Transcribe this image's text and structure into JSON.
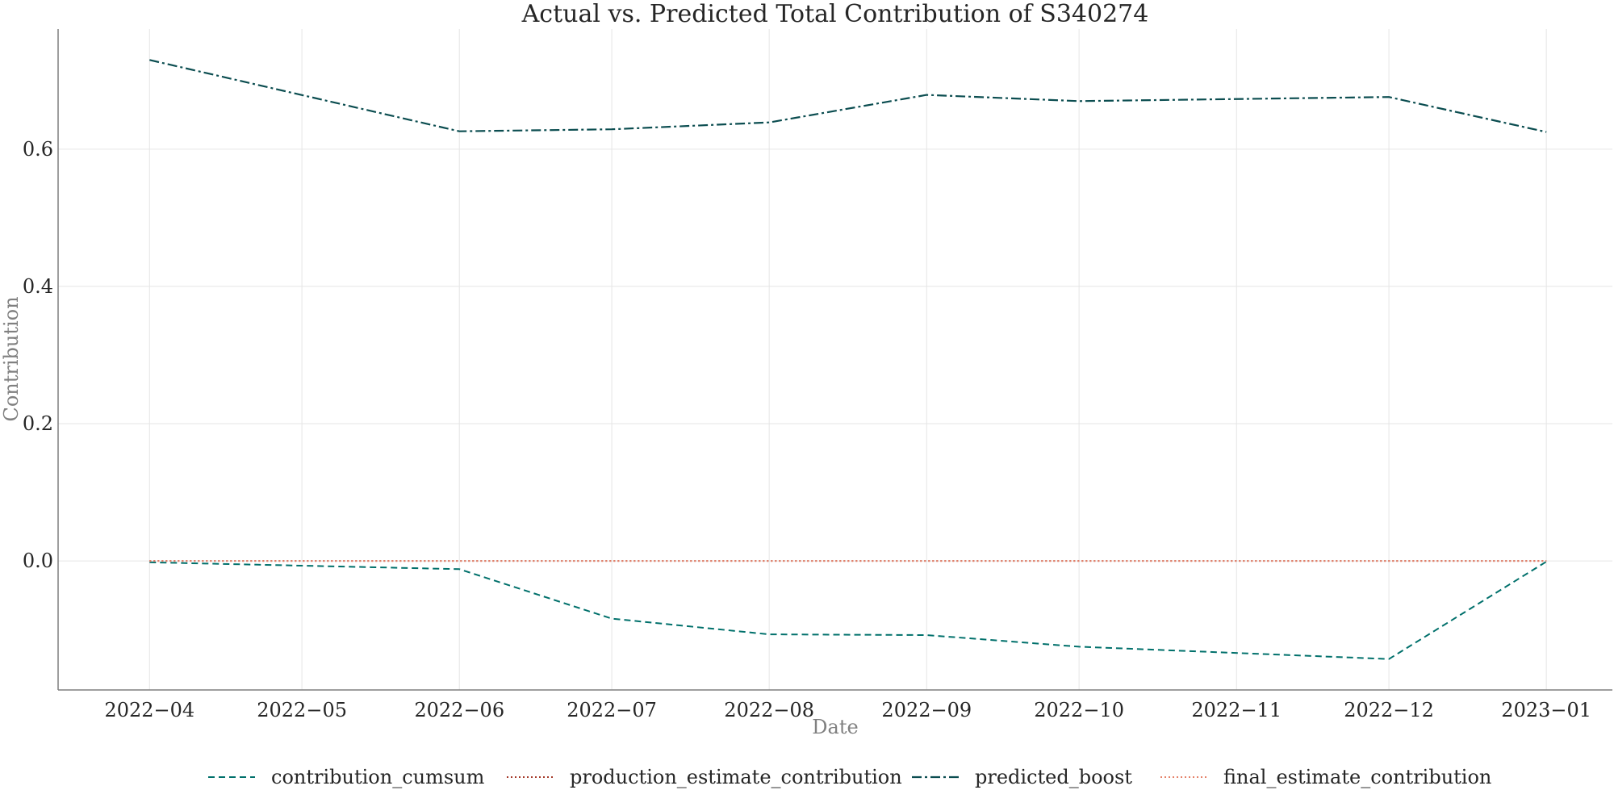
{
  "chart_data": {
    "type": "line",
    "title": "Actual vs. Predicted Total Contribution of S340274",
    "xlabel": "Date",
    "ylabel": "Contribution",
    "x_ticks": [
      "2022-04",
      "2022-05",
      "2022-06",
      "2022-07",
      "2022-08",
      "2022-09",
      "2022-10",
      "2022-11",
      "2022-12",
      "2023-01"
    ],
    "y_ticks": [
      0.0,
      0.2,
      0.4,
      0.6
    ],
    "y_tick_labels": [
      "0.0",
      "0.2",
      "0.4",
      "0.6"
    ],
    "xlim": [
      "2022-03-14",
      "2023-01-14"
    ],
    "ylim": [
      -0.188,
      0.775
    ],
    "grid": true,
    "legend_position": "bottom-center",
    "x": [
      "2022-04-01",
      "2022-06-01",
      "2022-07-01",
      "2022-08-01",
      "2022-09-01",
      "2022-10-01",
      "2022-12-01",
      "2023-01-01"
    ],
    "series": [
      {
        "name": "contribution_cumsum",
        "color": "#00706b",
        "dash": "dashed",
        "values": [
          -0.002,
          -0.012,
          -0.084,
          -0.107,
          -0.108,
          -0.125,
          -0.143,
          -0.001
        ]
      },
      {
        "name": "production_estimate_contribution",
        "color": "#a63a2a",
        "dash": "dotted",
        "values": [
          0.0,
          0.0,
          0.0,
          0.0,
          0.0,
          0.0,
          0.0,
          0.0
        ]
      },
      {
        "name": "predicted_boost",
        "color": "#0b4d50",
        "dash": "dashdot",
        "values": [
          0.73,
          0.626,
          0.629,
          0.639,
          0.679,
          0.67,
          0.676,
          0.625
        ]
      },
      {
        "name": "final_estimate_contribution",
        "color": "#e6836b",
        "dash": "dotted",
        "values": [
          0.0,
          0.0,
          0.0,
          0.0,
          0.0,
          0.0,
          0.0,
          0.0
        ]
      }
    ]
  }
}
